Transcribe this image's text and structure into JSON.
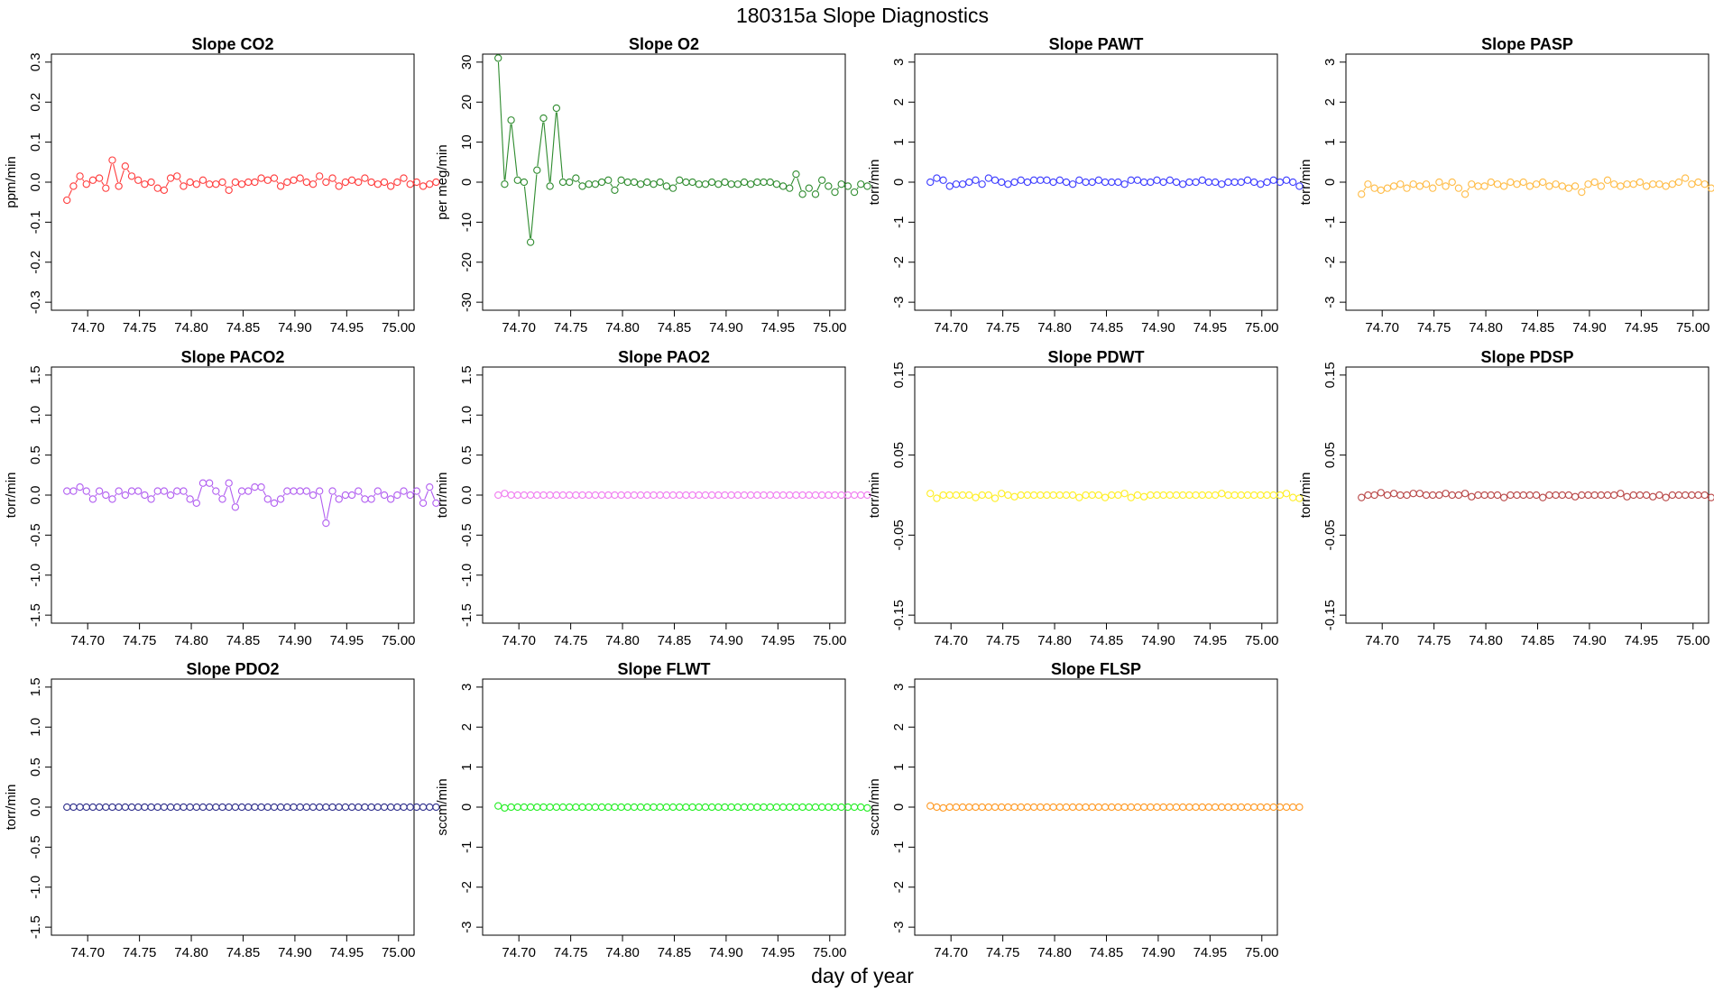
{
  "page": {
    "title": "180315a   Slope Diagnostics",
    "xlabel": "day of year"
  },
  "chart_data": [
    {
      "type": "line",
      "title": "Slope CO2",
      "ylabel": "ppm/min",
      "color": "#ff3b3b",
      "xlim": [
        74.665,
        75.015
      ],
      "ylim": [
        -0.32,
        0.32
      ],
      "xticks": [
        "74.70",
        "74.75",
        "74.80",
        "74.85",
        "74.90",
        "74.95",
        "75.00"
      ],
      "yticks": [
        "-0.3",
        "-0.2",
        "-0.1",
        "0.0",
        "0.1",
        "0.2",
        "0.3"
      ],
      "x_start": 74.68,
      "x_step": 0.00625,
      "values": [
        -0.045,
        -0.01,
        0.015,
        -0.005,
        0.005,
        0.01,
        -0.015,
        0.055,
        -0.01,
        0.04,
        0.015,
        0.005,
        -0.005,
        0,
        -0.015,
        -0.02,
        0.01,
        0.015,
        -0.01,
        0,
        -0.005,
        0.005,
        -0.005,
        -0.005,
        0,
        -0.02,
        0,
        -0.005,
        0,
        0,
        0.01,
        0.005,
        0.01,
        -0.01,
        0,
        0.005,
        0.01,
        0,
        -0.005,
        0.015,
        0,
        0.01,
        -0.01,
        0,
        0.005,
        0,
        0.01,
        0,
        -0.005,
        0,
        -0.01,
        0,
        0.01,
        -0.005,
        0,
        -0.01,
        -0.005,
        0
      ]
    },
    {
      "type": "line",
      "title": "Slope O2",
      "ylabel": "per meg/min",
      "color": "#2e8b2e",
      "xlim": [
        74.665,
        75.015
      ],
      "ylim": [
        -32,
        32
      ],
      "xticks": [
        "74.70",
        "74.75",
        "74.80",
        "74.85",
        "74.90",
        "74.95",
        "75.00"
      ],
      "yticks": [
        "-30",
        "-20",
        "-10",
        "0",
        "10",
        "20",
        "30"
      ],
      "x_start": 74.68,
      "x_step": 0.00625,
      "values": [
        31,
        -0.5,
        15.5,
        0.5,
        0,
        -15,
        3,
        16,
        -1,
        18.5,
        0,
        0,
        1,
        -1,
        -0.5,
        -0.5,
        0,
        0.5,
        -2,
        0.5,
        0,
        0,
        -0.5,
        0,
        -0.5,
        0,
        -1,
        -1.5,
        0.5,
        0,
        0,
        -0.5,
        -0.5,
        0,
        -0.5,
        0,
        -0.5,
        -0.5,
        0,
        -0.5,
        0,
        0,
        0,
        -0.5,
        -1,
        -1.5,
        2,
        -3,
        -1.5,
        -3,
        0.5,
        -1,
        -2.5,
        -0.5,
        -1,
        -2.5,
        -0.5,
        -1
      ]
    },
    {
      "type": "line",
      "title": "Slope PAWT",
      "ylabel": "torr/min",
      "color": "#3b3bff",
      "xlim": [
        74.665,
        75.015
      ],
      "ylim": [
        -3.2,
        3.2
      ],
      "xticks": [
        "74.70",
        "74.75",
        "74.80",
        "74.85",
        "74.90",
        "74.95",
        "75.00"
      ],
      "yticks": [
        "-3",
        "-2",
        "-1",
        "0",
        "1",
        "2",
        "3"
      ],
      "x_start": 74.68,
      "x_step": 0.00625,
      "values": [
        0,
        0.1,
        0.05,
        -0.1,
        -0.05,
        -0.05,
        0,
        0.05,
        -0.05,
        0.1,
        0.05,
        0,
        -0.05,
        0,
        0.05,
        0,
        0.05,
        0.05,
        0.05,
        0,
        0.05,
        0,
        -0.05,
        0.05,
        0,
        0,
        0.05,
        0,
        0,
        0,
        -0.05,
        0.05,
        0.05,
        0,
        0,
        0.05,
        0,
        0.05,
        0,
        -0.05,
        0,
        0,
        0.05,
        0,
        0,
        -0.05,
        0,
        0,
        0,
        0.05,
        0,
        -0.05,
        0,
        0.05,
        0,
        0.05,
        0,
        -0.1
      ]
    },
    {
      "type": "line",
      "title": "Slope PASP",
      "ylabel": "torr/min",
      "color": "#ffbb44",
      "xlim": [
        74.665,
        75.015
      ],
      "ylim": [
        -3.2,
        3.2
      ],
      "xticks": [
        "74.70",
        "74.75",
        "74.80",
        "74.85",
        "74.90",
        "74.95",
        "75.00"
      ],
      "yticks": [
        "-3",
        "-2",
        "-1",
        "0",
        "1",
        "2",
        "3"
      ],
      "x_start": 74.68,
      "x_step": 0.00625,
      "values": [
        -0.3,
        -0.05,
        -0.15,
        -0.2,
        -0.15,
        -0.1,
        -0.05,
        -0.15,
        -0.05,
        -0.1,
        -0.05,
        -0.15,
        0,
        -0.1,
        0,
        -0.15,
        -0.3,
        -0.05,
        -0.1,
        -0.1,
        0,
        -0.05,
        -0.1,
        0,
        -0.05,
        0,
        -0.1,
        -0.05,
        0,
        -0.1,
        -0.05,
        -0.1,
        -0.15,
        -0.1,
        -0.25,
        -0.05,
        0,
        -0.1,
        0.05,
        -0.05,
        -0.1,
        -0.05,
        -0.05,
        0,
        -0.1,
        -0.05,
        -0.05,
        -0.1,
        -0.05,
        0,
        0.1,
        -0.05,
        0,
        -0.05,
        -0.15,
        -0.1,
        -0.05,
        -0.15
      ]
    },
    {
      "type": "line",
      "title": "Slope PACO2",
      "ylabel": "torr/min",
      "color": "#b05cf0",
      "xlim": [
        74.665,
        75.015
      ],
      "ylim": [
        -1.6,
        1.6
      ],
      "xticks": [
        "74.70",
        "74.75",
        "74.80",
        "74.85",
        "74.90",
        "74.95",
        "75.00"
      ],
      "yticks": [
        "-1.5",
        "-1.0",
        "-0.5",
        "0.0",
        "0.5",
        "1.0",
        "1.5"
      ],
      "x_start": 74.68,
      "x_step": 0.00625,
      "values": [
        0.05,
        0.05,
        0.1,
        0.05,
        -0.05,
        0.05,
        0,
        -0.05,
        0.05,
        0,
        0.05,
        0.05,
        0,
        -0.05,
        0.05,
        0.05,
        0,
        0.05,
        0.05,
        -0.05,
        -0.1,
        0.15,
        0.15,
        0.05,
        -0.05,
        0.15,
        -0.15,
        0.05,
        0.05,
        0.1,
        0.1,
        -0.05,
        -0.1,
        -0.05,
        0.05,
        0.05,
        0.05,
        0.05,
        0,
        0.05,
        -0.35,
        0.05,
        -0.05,
        0,
        0,
        0.05,
        -0.05,
        -0.05,
        0.05,
        0,
        -0.05,
        0,
        0.05,
        0,
        0.05,
        -0.1,
        0.1,
        -0.1
      ]
    },
    {
      "type": "line",
      "title": "Slope PAO2",
      "ylabel": "torr/min",
      "color": "#f07cf0",
      "xlim": [
        74.665,
        75.015
      ],
      "ylim": [
        -1.6,
        1.6
      ],
      "xticks": [
        "74.70",
        "74.75",
        "74.80",
        "74.85",
        "74.90",
        "74.95",
        "75.00"
      ],
      "yticks": [
        "-1.5",
        "-1.0",
        "-0.5",
        "0.0",
        "0.5",
        "1.0",
        "1.5"
      ],
      "x_start": 74.68,
      "x_step": 0.00625,
      "values": [
        0,
        0.02,
        0,
        0,
        0,
        0,
        0,
        0,
        0,
        0,
        0,
        0,
        0,
        0,
        0,
        0,
        0,
        0,
        0,
        0,
        0,
        0,
        0,
        0,
        0,
        0,
        0,
        0,
        0,
        0,
        0,
        0,
        0,
        0,
        0,
        0,
        0,
        0,
        0,
        0,
        0,
        0,
        0,
        0,
        0,
        0,
        0,
        0,
        0,
        0,
        0,
        0,
        0,
        0,
        0,
        0,
        0,
        0
      ]
    },
    {
      "type": "line",
      "title": "Slope PDWT",
      "ylabel": "torr/min",
      "color": "#ffee22",
      "xlim": [
        74.665,
        75.015
      ],
      "ylim": [
        -0.16,
        0.16
      ],
      "xticks": [
        "74.70",
        "74.75",
        "74.80",
        "74.85",
        "74.90",
        "74.95",
        "75.00"
      ],
      "yticks": [
        "-0.15",
        "-0.05",
        "0.05",
        "0.15"
      ],
      "x_start": 74.68,
      "x_step": 0.00625,
      "values": [
        0.002,
        -0.004,
        0,
        0,
        0,
        0,
        0,
        -0.003,
        0,
        0,
        -0.004,
        0.002,
        0,
        -0.002,
        0,
        0,
        0,
        0,
        0,
        0,
        0,
        0,
        0,
        -0.003,
        0,
        0,
        0,
        -0.003,
        0,
        0,
        0.002,
        -0.003,
        0,
        -0.002,
        0,
        0,
        0,
        0,
        0,
        0,
        0,
        0,
        0,
        0,
        0,
        0.002,
        0,
        0,
        0,
        0,
        0,
        0,
        0,
        0,
        0,
        0.002,
        -0.003,
        -0.004
      ]
    },
    {
      "type": "line",
      "title": "Slope PDSP",
      "ylabel": "torr/min",
      "color": "#b84545",
      "xlim": [
        74.665,
        75.015
      ],
      "ylim": [
        -0.16,
        0.16
      ],
      "xticks": [
        "74.70",
        "74.75",
        "74.80",
        "74.85",
        "74.90",
        "74.95",
        "75.00"
      ],
      "yticks": [
        "-0.15",
        "-0.05",
        "0.05",
        "0.15"
      ],
      "x_start": 74.68,
      "x_step": 0.00625,
      "values": [
        -0.003,
        0,
        0,
        0.003,
        0,
        0.002,
        0,
        0,
        0.002,
        0.002,
        0,
        0,
        0,
        0.002,
        0,
        0,
        0.002,
        -0.002,
        0,
        0,
        0,
        0,
        -0.003,
        0,
        0,
        0,
        0,
        0,
        -0.003,
        0,
        0,
        0,
        0,
        -0.002,
        0,
        0,
        0,
        0,
        0,
        0,
        0.002,
        -0.002,
        0,
        0,
        0,
        -0.002,
        0,
        -0.003,
        0,
        0,
        0,
        0,
        0,
        0,
        -0.003,
        -0.004,
        -0.002,
        0
      ]
    },
    {
      "type": "line",
      "title": "Slope PDO2",
      "ylabel": "torr/min",
      "color": "#2e2e8b",
      "xlim": [
        74.665,
        75.015
      ],
      "ylim": [
        -1.6,
        1.6
      ],
      "xticks": [
        "74.70",
        "74.75",
        "74.80",
        "74.85",
        "74.90",
        "74.95",
        "75.00"
      ],
      "yticks": [
        "-1.5",
        "-1.0",
        "-0.5",
        "0.0",
        "0.5",
        "1.0",
        "1.5"
      ],
      "x_start": 74.68,
      "x_step": 0.00625,
      "values": [
        0,
        0,
        0,
        0,
        0,
        0,
        0,
        0,
        0,
        0,
        0,
        0,
        0,
        0,
        0,
        0,
        0,
        0,
        0,
        0,
        0,
        0,
        0,
        0,
        0,
        0,
        0,
        0,
        0,
        0,
        0,
        0,
        0,
        0,
        0,
        0,
        0,
        0,
        0,
        0,
        0,
        0,
        0,
        0,
        0,
        0,
        0,
        0,
        0,
        0,
        0,
        0,
        0,
        0,
        0,
        0,
        0,
        0
      ]
    },
    {
      "type": "line",
      "title": "Slope FLWT",
      "ylabel": "sccm/min",
      "color": "#22ee22",
      "xlim": [
        74.665,
        75.015
      ],
      "ylim": [
        -3.2,
        3.2
      ],
      "xticks": [
        "74.70",
        "74.75",
        "74.80",
        "74.85",
        "74.90",
        "74.95",
        "75.00"
      ],
      "yticks": [
        "-3",
        "-2",
        "-1",
        "0",
        "1",
        "2",
        "3"
      ],
      "x_start": 74.68,
      "x_step": 0.00625,
      "values": [
        0.03,
        -0.02,
        0,
        0,
        0,
        0,
        0,
        0,
        0,
        0,
        0,
        0,
        0,
        0,
        0,
        0,
        0,
        0,
        0,
        0,
        0,
        0,
        0,
        0,
        0,
        0,
        0,
        0,
        0,
        0,
        0,
        0,
        0,
        0,
        0,
        0,
        0,
        0,
        0,
        0,
        0,
        0,
        0,
        0,
        0,
        0,
        0,
        0,
        0,
        0,
        0,
        0,
        0,
        0,
        0,
        0,
        0,
        -0.02
      ]
    },
    {
      "type": "line",
      "title": "Slope FLSP",
      "ylabel": "sccm/min",
      "color": "#ff9922",
      "xlim": [
        74.665,
        75.015
      ],
      "ylim": [
        -3.2,
        3.2
      ],
      "xticks": [
        "74.70",
        "74.75",
        "74.80",
        "74.85",
        "74.90",
        "74.95",
        "75.00"
      ],
      "yticks": [
        "-3",
        "-2",
        "-1",
        "0",
        "1",
        "2",
        "3"
      ],
      "x_start": 74.68,
      "x_step": 0.00625,
      "values": [
        0.03,
        0,
        -0.02,
        0,
        0,
        0,
        0,
        0,
        0,
        0,
        0,
        0,
        0,
        0,
        0,
        0,
        0,
        0,
        0,
        0,
        0,
        0,
        0,
        0,
        0,
        0,
        0,
        0,
        0,
        0,
        0,
        0,
        0,
        0,
        0,
        0,
        0,
        0,
        0,
        0,
        0,
        0,
        0,
        0,
        0,
        0,
        0,
        0,
        0,
        0,
        0,
        0,
        0,
        0,
        0,
        0,
        0,
        0
      ]
    }
  ]
}
